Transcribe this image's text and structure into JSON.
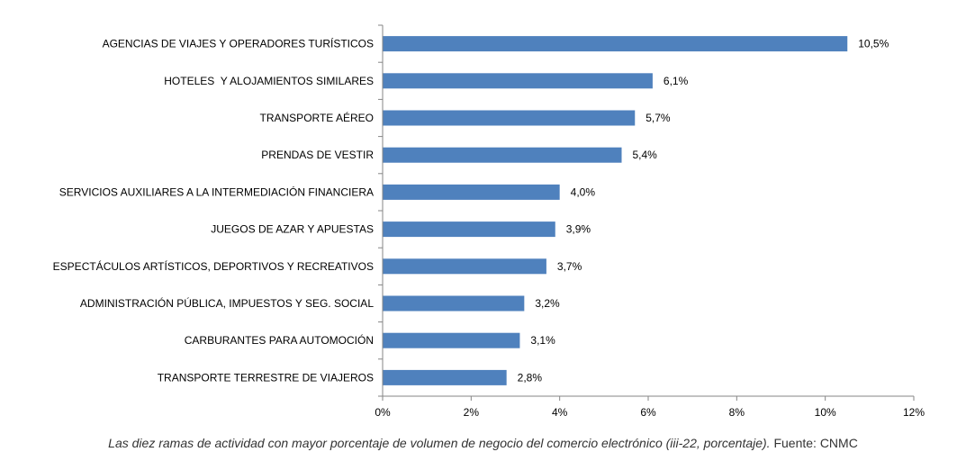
{
  "chart_data": {
    "type": "bar",
    "orientation": "horizontal",
    "categories": [
      "AGENCIAS DE VIAJES Y OPERADORES TURÍSTICOS",
      "HOTELES  Y ALOJAMIENTOS SIMILARES",
      "TRANSPORTE AÉREO",
      "PRENDAS DE VESTIR",
      "SERVICIOS AUXILIARES A LA INTERMEDIACIÓN FINANCIERA",
      "JUEGOS DE AZAR Y APUESTAS",
      "ESPECTÁCULOS ARTÍSTICOS, DEPORTIVOS Y RECREATIVOS",
      "ADMINISTRACIÓN PÚBLICA, IMPUESTOS Y SEG. SOCIAL",
      "CARBURANTES PARA AUTOMOCIÓN",
      "TRANSPORTE TERRESTRE DE VIAJEROS"
    ],
    "values": [
      10.5,
      6.1,
      5.7,
      5.4,
      4.0,
      3.9,
      3.7,
      3.2,
      3.1,
      2.8
    ],
    "value_labels": [
      "10,5%",
      "6,1%",
      "5,7%",
      "5,4%",
      "4,0%",
      "3,9%",
      "3,7%",
      "3,2%",
      "3,1%",
      "2,8%"
    ],
    "xlim": [
      0,
      12
    ],
    "xticks": [
      0,
      2,
      4,
      6,
      8,
      10,
      12
    ],
    "xtick_labels": [
      "0%",
      "2%",
      "4%",
      "6%",
      "8%",
      "10%",
      "12%"
    ],
    "bar_color": "#4f81bd",
    "grid": false,
    "legend": "none"
  },
  "caption": {
    "italic_text": "Las diez ramas de actividad con mayor porcentaje de volumen de negocio del comercio electrónico (iii-22, porcentaje).",
    "source_text": " Fuente: CNMC"
  }
}
